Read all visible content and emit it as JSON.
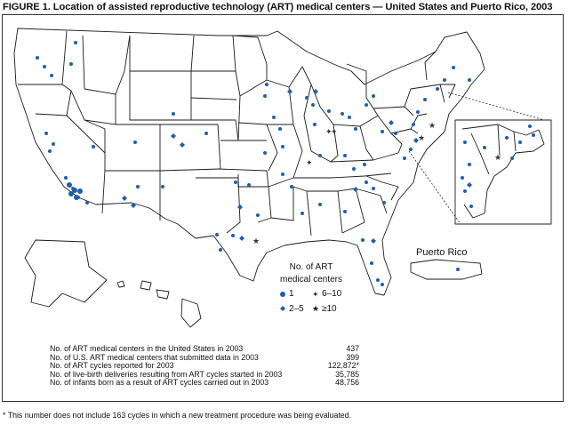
{
  "figure": {
    "title": "FIGURE 1. Location of assisted reproductive technology (ART) medical centers — United States and Puerto Rico, 2003"
  },
  "map": {
    "inset_label": "Puerto Rico",
    "state_color": "#1a1a1a",
    "marker_color": "#1f5fa8"
  },
  "legend": {
    "title_line1": "No. of ART",
    "title_line2": "medical centers",
    "items": [
      {
        "symbol": "circle",
        "label": "1"
      },
      {
        "symbol": "cross-diamond",
        "label": "6–10"
      },
      {
        "symbol": "diamond",
        "label": "2–5"
      },
      {
        "symbol": "star",
        "label": "≥10"
      }
    ]
  },
  "stats": [
    {
      "label": "No. of ART medical centers in the United States in 2003",
      "value": "437"
    },
    {
      "label": "No. of U.S. ART medical centers that submitted data in 2003",
      "value": "399"
    },
    {
      "label": "No. of ART cycles reported for 2003",
      "value": "122,872*"
    },
    {
      "label": "No. of live-birth deliveries resulting from ART cycles started in 2003",
      "value": "35,785"
    },
    {
      "label": "No. of infants born as a result of ART cycles carried out in 2003",
      "value": "48,756"
    }
  ],
  "footnote": "* This number does not include 163 cycles in which a new treatment procedure was being evaluated."
}
